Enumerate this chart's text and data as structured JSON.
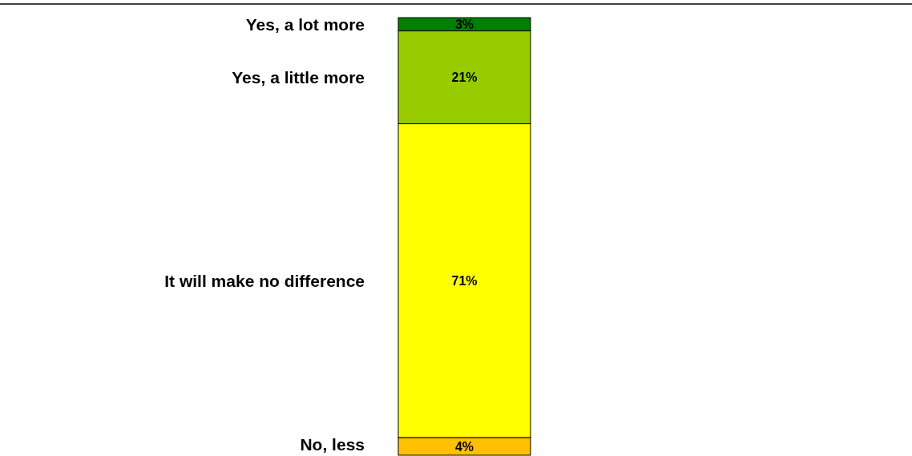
{
  "chart_data": {
    "type": "bar",
    "stacked": true,
    "categories": [
      null
    ],
    "series": [
      {
        "name": "No, less",
        "color": "#ffc000",
        "values": [
          4
        ],
        "value_labels": [
          "4%"
        ]
      },
      {
        "name": "It will make no difference",
        "color": "#ffff00",
        "values": [
          71
        ],
        "value_labels": [
          "71%"
        ]
      },
      {
        "name": "Yes, a little more",
        "color": "#99cc00",
        "values": [
          21
        ],
        "value_labels": [
          "21%"
        ]
      },
      {
        "name": "Yes, a lot more",
        "color": "#008000",
        "values": [
          3
        ],
        "value_labels": [
          "3%"
        ]
      }
    ]
  }
}
